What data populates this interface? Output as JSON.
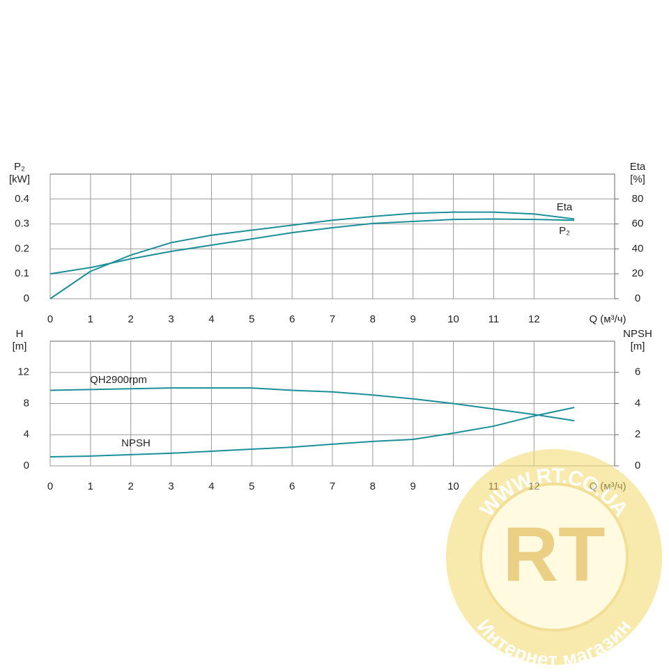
{
  "chart_data": [
    {
      "type": "line",
      "x_label": "Q (м³/ч)",
      "ylabel": [
        "P₂",
        "[kW]"
      ],
      "y2label": [
        "Eta",
        "[%]"
      ],
      "x": [
        0,
        1,
        2,
        3,
        4,
        5,
        6,
        7,
        8,
        9,
        10,
        11,
        12,
        13
      ],
      "xlim": [
        0,
        14
      ],
      "xticks": [
        0,
        1,
        2,
        3,
        4,
        5,
        6,
        7,
        8,
        9,
        10,
        11,
        12
      ],
      "ylim": [
        0,
        0.5
      ],
      "yticks": [
        0,
        0.1,
        0.2,
        0.3,
        0.4
      ],
      "y2lim": [
        0,
        100
      ],
      "y2ticks": [
        0,
        20,
        40,
        60,
        80
      ],
      "grid": true,
      "series": [
        {
          "name": "Eta",
          "color": "#1a8f9a",
          "axis": "y2",
          "values": [
            0,
            22,
            35,
            45,
            51,
            55,
            59,
            63,
            66,
            68.5,
            69.5,
            69.5,
            68,
            64
          ]
        },
        {
          "name": "P₂",
          "color": "#1a8f9a",
          "values": [
            0.1,
            0.125,
            0.16,
            0.19,
            0.215,
            0.24,
            0.265,
            0.285,
            0.302,
            0.31,
            0.318,
            0.32,
            0.318,
            0.315
          ]
        }
      ]
    },
    {
      "type": "line",
      "x_label": "Q (м³/ч)",
      "ylabel": [
        "H",
        "[m]"
      ],
      "y2label": [
        "NPSH",
        "[m]"
      ],
      "x": [
        0,
        1,
        2,
        3,
        4,
        5,
        6,
        7,
        8,
        9,
        10,
        11,
        12,
        13
      ],
      "xlim": [
        0,
        14
      ],
      "xticks": [
        0,
        1,
        2,
        3,
        4,
        5,
        6,
        7,
        8,
        9,
        10,
        11,
        12
      ],
      "ylim": [
        0,
        16
      ],
      "yticks": [
        0,
        4,
        8,
        12
      ],
      "y2lim": [
        0,
        8
      ],
      "y2ticks": [
        0,
        2,
        4,
        6
      ],
      "grid": true,
      "series": [
        {
          "name": "QH2900rpm",
          "color": "#1a8f9a",
          "values": [
            9.7,
            9.8,
            9.9,
            10,
            10,
            10,
            9.7,
            9.5,
            9.1,
            8.6,
            8,
            7.3,
            6.6,
            5.8
          ]
        },
        {
          "name": "NPSH",
          "color": "#1a8f9a",
          "axis": "y2",
          "values": [
            0.58,
            0.63,
            0.72,
            0.81,
            0.94,
            1.07,
            1.2,
            1.39,
            1.57,
            1.7,
            2.1,
            2.55,
            3.2,
            3.75
          ]
        }
      ]
    }
  ],
  "watermark": {
    "url": "WWW.RT.CO.UA",
    "logo": "RT",
    "tagline": "Интернет магазин"
  }
}
